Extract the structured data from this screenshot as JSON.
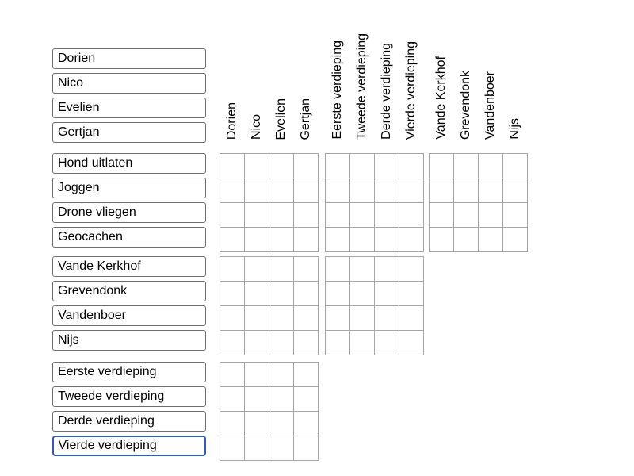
{
  "puzzle": {
    "type": "logic-grid",
    "categories": {
      "names": {
        "items": [
          "Dorien",
          "Nico",
          "Evelien",
          "Gertjan"
        ]
      },
      "activities": {
        "items": [
          "Hond uitlaten",
          "Joggen",
          "Drone vliegen",
          "Geocachen"
        ]
      },
      "surnames": {
        "items": [
          "Vande Kerkhof",
          "Grevendonk",
          "Vandenboer",
          "Nijs"
        ]
      },
      "floors": {
        "items": [
          "Eerste verdieping",
          "Tweede verdieping",
          "Derde verdieping",
          "Vierde verdieping"
        ]
      }
    },
    "left_row_groups_order": [
      "names",
      "activities",
      "surnames",
      "floors"
    ],
    "top_column_groups_order": [
      "names",
      "floors",
      "surnames"
    ],
    "focused_input": {
      "group": "floors",
      "index": 3,
      "label": "Vierde verdieping"
    }
  },
  "grid": {
    "cells_empty": true,
    "blocks": [
      {
        "id": "activities-names",
        "row_group": "activities",
        "col_group": "names",
        "rows": 4,
        "cols": 4
      },
      {
        "id": "activities-floors",
        "row_group": "activities",
        "col_group": "floors",
        "rows": 4,
        "cols": 4
      },
      {
        "id": "activities-surnames",
        "row_group": "activities",
        "col_group": "surnames",
        "rows": 4,
        "cols": 4
      },
      {
        "id": "surnames-names",
        "row_group": "surnames",
        "col_group": "names",
        "rows": 4,
        "cols": 4
      },
      {
        "id": "surnames-floors",
        "row_group": "surnames",
        "col_group": "floors",
        "rows": 4,
        "cols": 4
      },
      {
        "id": "floors-names",
        "row_group": "floors",
        "col_group": "names",
        "rows": 4,
        "cols": 4
      }
    ]
  },
  "colors": {
    "background": "#ffffff",
    "text": "#000000",
    "input_border": "#6e6e6e",
    "focus_border": "#2e5cb8",
    "grid_line": "#a6a6a6",
    "cell_background": "#ffffff"
  }
}
